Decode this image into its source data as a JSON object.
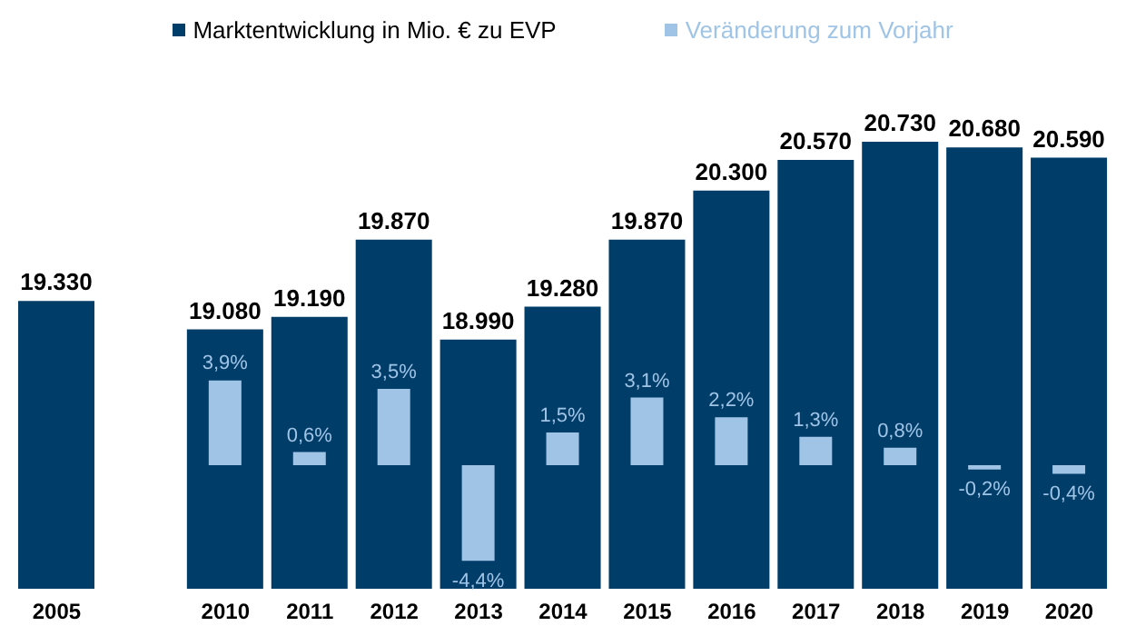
{
  "chart_data": {
    "type": "bar",
    "legend": "top",
    "tick_labels": "x",
    "categories": [
      "2005",
      null,
      "2010",
      "2011",
      "2012",
      "2013",
      "2014",
      "2015",
      "2016",
      "2017",
      "2018",
      "2019",
      "2020"
    ],
    "ylim": [
      16800,
      20730
    ],
    "y2lim": [
      -4.4,
      3.9
    ],
    "series": [
      {
        "name": "Marktentwicklung in Mio. € zu EVP",
        "color": "#003d69",
        "values": [
          19330,
          null,
          19080,
          19190,
          19870,
          18990,
          19280,
          19870,
          20300,
          20570,
          20730,
          20680,
          20590
        ],
        "value_labels": [
          "19.330",
          null,
          "19.080",
          "19.190",
          "19.870",
          "18.990",
          "19.280",
          "19.870",
          "20.300",
          "20.570",
          "20.730",
          "20.680",
          "20.590"
        ]
      },
      {
        "name": "Veränderung zum Vorjahr",
        "color": "#a0c4e6",
        "axis": "y2",
        "values": [
          null,
          null,
          3.9,
          0.6,
          3.5,
          -4.4,
          1.5,
          3.1,
          2.2,
          1.3,
          0.8,
          -0.2,
          -0.4
        ],
        "value_labels": [
          null,
          null,
          "3,9%",
          "0,6%",
          "3,5%",
          "-4,4%",
          "1,5%",
          "3,1%",
          "2,2%",
          "1,3%",
          "0,8%",
          "-0,2%",
          "-0,4%"
        ]
      }
    ]
  }
}
